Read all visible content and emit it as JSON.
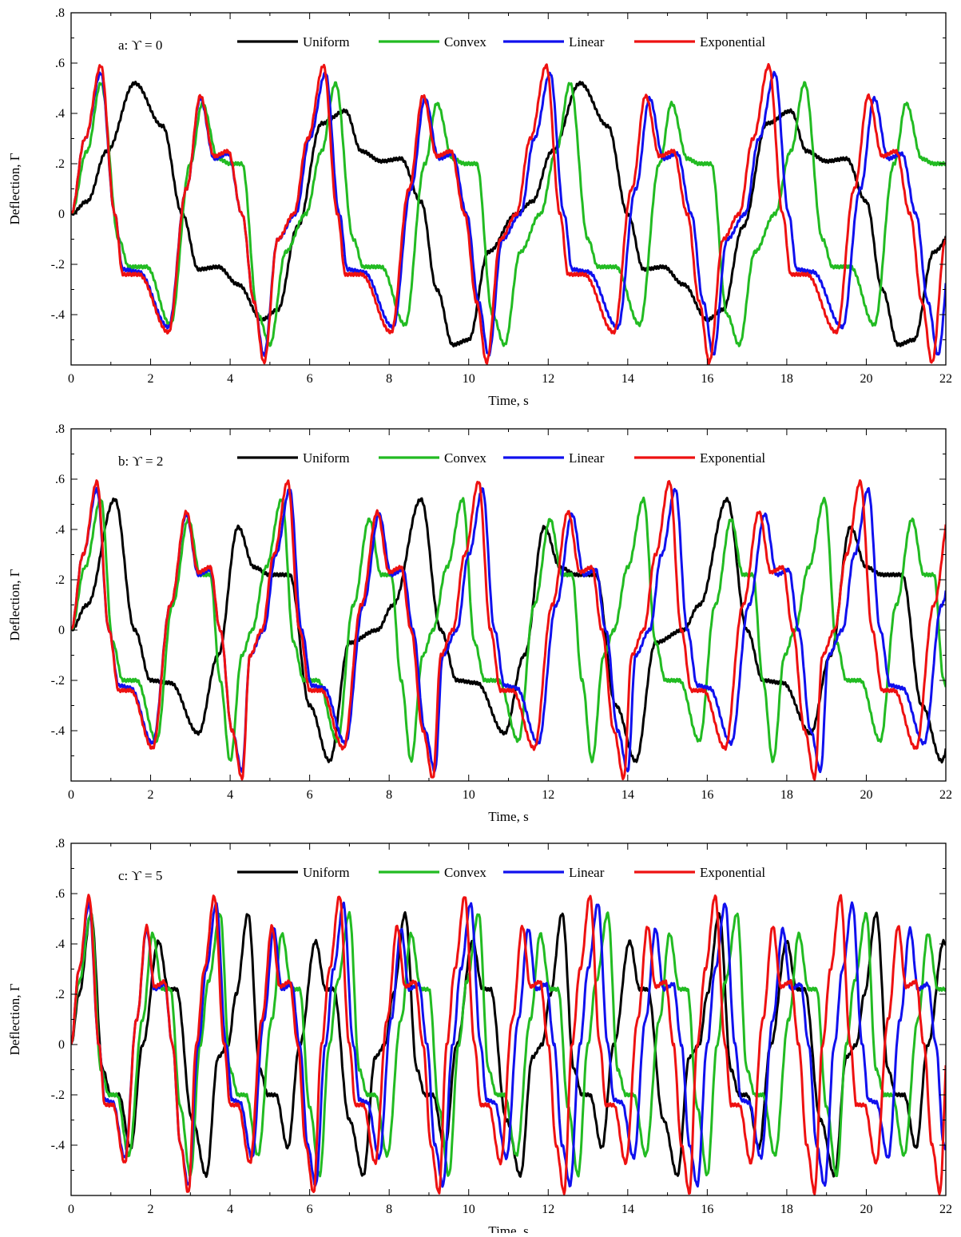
{
  "figure": {
    "panels": [
      {
        "label": "a: ϒ = 0",
        "xlabel": "Time, s",
        "ylabel": "Deflection, Γ"
      },
      {
        "label": "b: ϒ = 2",
        "xlabel": "Time, s",
        "ylabel": "Deflection, Γ"
      },
      {
        "label": "c: ϒ = 5",
        "xlabel": "Time, s",
        "ylabel": "Deflection, Γ"
      }
    ],
    "legend": [
      "Uniform",
      "Convex",
      "Linear",
      "Exponential"
    ]
  },
  "chart_data": [
    {
      "type": "line",
      "title": "",
      "panel_label": "a: ϒ = 0",
      "xlabel": "Time, s",
      "ylabel": "Deflection, Γ",
      "xlim": [
        0,
        22
      ],
      "ylim": [
        -0.6,
        0.8
      ],
      "xticks": [
        0,
        2,
        4,
        6,
        8,
        10,
        12,
        14,
        16,
        18,
        20,
        22
      ],
      "yticks": [
        -0.4,
        -0.2,
        0,
        0.2,
        0.4,
        0.6,
        0.8
      ],
      "grid": false,
      "legend_position": "top",
      "series": [
        {
          "name": "Uniform",
          "color": "#000000",
          "period": 11.2,
          "x": [
            0,
            0.4,
            0.9,
            1.6,
            2.3,
            2.8,
            3.2,
            3.7,
            4.2,
            4.8,
            5.2,
            5.7,
            6.3,
            6.9,
            7.3,
            7.8,
            8.3,
            8.8,
            9.2,
            9.6,
            10.0,
            10.5,
            11.2
          ],
          "y": [
            0,
            0.05,
            0.25,
            0.52,
            0.35,
            0.0,
            -0.22,
            -0.21,
            -0.28,
            -0.42,
            -0.38,
            -0.05,
            0.36,
            0.41,
            0.25,
            0.21,
            0.22,
            0.05,
            -0.3,
            -0.52,
            -0.5,
            -0.15,
            0
          ]
        },
        {
          "name": "Convex",
          "color": "#22bb22",
          "period": 5.9,
          "x": [
            0,
            0.4,
            0.75,
            1.2,
            1.45,
            1.9,
            2.5,
            3.0,
            3.3,
            3.7,
            4.0,
            4.3,
            4.7,
            5.0,
            5.4,
            5.9
          ],
          "y": [
            0,
            0.25,
            0.52,
            -0.1,
            -0.21,
            -0.21,
            -0.44,
            0.2,
            0.44,
            0.22,
            0.2,
            0.2,
            -0.4,
            -0.52,
            -0.15,
            0
          ]
        },
        {
          "name": "Linear",
          "color": "#1010ee",
          "period": 5.65,
          "x": [
            0,
            0.35,
            0.75,
            1.1,
            1.3,
            1.7,
            2.45,
            2.9,
            3.25,
            3.6,
            3.95,
            4.3,
            4.6,
            4.85,
            5.2,
            5.65
          ],
          "y": [
            0,
            0.3,
            0.56,
            0.0,
            -0.22,
            -0.23,
            -0.45,
            0.1,
            0.46,
            0.22,
            0.24,
            0.0,
            -0.35,
            -0.56,
            -0.1,
            0
          ]
        },
        {
          "name": "Exponential",
          "color": "#ee1111",
          "period": 5.6,
          "x": [
            0,
            0.35,
            0.75,
            1.1,
            1.3,
            1.7,
            2.45,
            2.9,
            3.25,
            3.6,
            3.95,
            4.3,
            4.6,
            4.85,
            5.2,
            5.6
          ],
          "y": [
            0,
            0.3,
            0.59,
            0.0,
            -0.24,
            -0.24,
            -0.47,
            0.1,
            0.47,
            0.23,
            0.25,
            0.0,
            -0.35,
            -0.59,
            -0.1,
            0
          ]
        }
      ]
    },
    {
      "type": "line",
      "title": "",
      "panel_label": "b: ϒ = 2",
      "xlabel": "Time, s",
      "ylabel": "Deflection, Γ",
      "xlim": [
        0,
        22
      ],
      "ylim": [
        -0.6,
        0.8
      ],
      "xticks": [
        0,
        2,
        4,
        6,
        8,
        10,
        12,
        14,
        16,
        18,
        20,
        22
      ],
      "yticks": [
        -0.4,
        -0.2,
        0,
        0.2,
        0.4,
        0.6,
        0.8
      ],
      "grid": false,
      "legend_position": "top",
      "series": [
        {
          "name": "Uniform",
          "color": "#000000",
          "period": 7.7,
          "x": [
            0,
            0.4,
            1.1,
            1.6,
            2.0,
            2.5,
            3.2,
            3.7,
            4.2,
            4.6,
            5.0,
            5.5,
            6.0,
            6.5,
            7.0,
            7.7
          ],
          "y": [
            0,
            0.1,
            0.52,
            0.0,
            -0.2,
            -0.21,
            -0.41,
            -0.1,
            0.41,
            0.25,
            0.22,
            0.22,
            -0.3,
            -0.52,
            -0.05,
            0
          ]
        },
        {
          "name": "Convex",
          "color": "#22bb22",
          "period": 4.55,
          "x": [
            0,
            0.35,
            0.75,
            1.05,
            1.3,
            1.65,
            2.15,
            2.55,
            2.95,
            3.25,
            3.5,
            3.75,
            4.0,
            4.3,
            4.55
          ],
          "y": [
            0,
            0.25,
            0.52,
            -0.05,
            -0.2,
            -0.2,
            -0.44,
            0.1,
            0.44,
            0.22,
            0.22,
            -0.2,
            -0.52,
            -0.1,
            0
          ]
        },
        {
          "name": "Linear",
          "color": "#1010ee",
          "period": 4.85,
          "x": [
            0,
            0.3,
            0.65,
            0.95,
            1.2,
            1.5,
            2.05,
            2.5,
            2.9,
            3.2,
            3.5,
            3.75,
            4.05,
            4.3,
            4.5,
            4.85
          ],
          "y": [
            0,
            0.3,
            0.56,
            0.0,
            -0.22,
            -0.23,
            -0.45,
            0.1,
            0.46,
            0.22,
            0.24,
            0.0,
            -0.4,
            -0.56,
            -0.1,
            0
          ]
        },
        {
          "name": "Exponential",
          "color": "#ee1111",
          "period": 4.8,
          "x": [
            0,
            0.3,
            0.65,
            0.95,
            1.2,
            1.5,
            2.05,
            2.5,
            2.9,
            3.2,
            3.5,
            3.75,
            4.05,
            4.3,
            4.5,
            4.8
          ],
          "y": [
            0,
            0.3,
            0.59,
            0.0,
            -0.24,
            -0.24,
            -0.47,
            0.1,
            0.47,
            0.23,
            0.25,
            0.0,
            -0.4,
            -0.59,
            -0.1,
            0
          ]
        }
      ]
    },
    {
      "type": "line",
      "title": "",
      "panel_label": "c: ϒ = 5",
      "xlabel": "Time, s",
      "ylabel": "Deflection, Γ",
      "xlim": [
        0,
        22
      ],
      "ylim": [
        -0.6,
        0.8
      ],
      "xticks": [
        0,
        2,
        4,
        6,
        8,
        10,
        12,
        14,
        16,
        18,
        20,
        22
      ],
      "yticks": [
        -0.4,
        -0.2,
        0,
        0.2,
        0.4,
        0.6,
        0.8
      ],
      "grid": false,
      "legend_position": "top",
      "series": [
        {
          "name": "Uniform",
          "color": "#000000",
          "period": 3.95,
          "x": [
            0,
            0.2,
            0.5,
            0.8,
            1.0,
            1.2,
            1.5,
            1.8,
            2.2,
            2.45,
            2.65,
            3.05,
            3.4,
            3.7,
            3.95
          ],
          "y": [
            0,
            0.2,
            0.52,
            -0.1,
            -0.2,
            -0.2,
            -0.41,
            0.0,
            0.41,
            0.22,
            0.22,
            -0.3,
            -0.52,
            -0.05,
            0
          ]
        },
        {
          "name": "Convex",
          "color": "#22bb22",
          "period": 3.25,
          "x": [
            0,
            0.2,
            0.5,
            0.75,
            0.95,
            1.15,
            1.45,
            1.8,
            2.05,
            2.3,
            2.5,
            2.75,
            3.0,
            3.25
          ],
          "y": [
            0,
            0.25,
            0.52,
            -0.1,
            -0.2,
            -0.2,
            -0.44,
            0.1,
            0.44,
            0.22,
            0.22,
            -0.25,
            -0.52,
            0
          ]
        },
        {
          "name": "Linear",
          "color": "#1010ee",
          "period": 3.2,
          "x": [
            0,
            0.2,
            0.45,
            0.7,
            0.85,
            1.05,
            1.35,
            1.65,
            1.9,
            2.1,
            2.35,
            2.55,
            2.75,
            2.95,
            3.2
          ],
          "y": [
            0,
            0.3,
            0.56,
            0.0,
            -0.22,
            -0.23,
            -0.45,
            0.1,
            0.46,
            0.22,
            0.24,
            0.0,
            -0.4,
            -0.56,
            0
          ]
        },
        {
          "name": "Exponential",
          "color": "#ee1111",
          "period": 3.15,
          "x": [
            0,
            0.2,
            0.45,
            0.7,
            0.85,
            1.05,
            1.35,
            1.65,
            1.9,
            2.1,
            2.35,
            2.55,
            2.75,
            2.95,
            3.15
          ],
          "y": [
            0,
            0.3,
            0.59,
            0.0,
            -0.24,
            -0.24,
            -0.47,
            0.1,
            0.47,
            0.23,
            0.25,
            0.0,
            -0.4,
            -0.59,
            0
          ]
        }
      ]
    }
  ]
}
